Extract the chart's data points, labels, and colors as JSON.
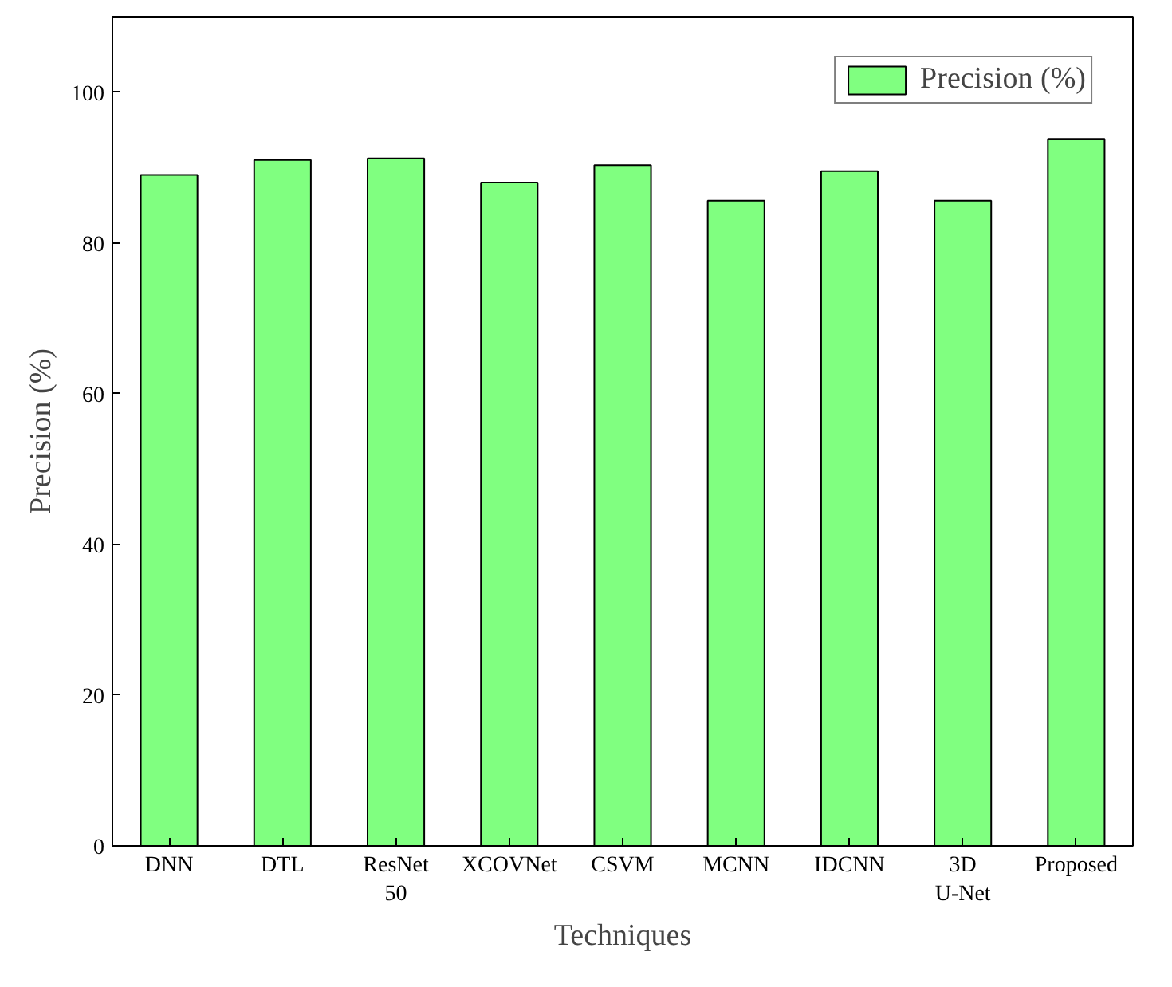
{
  "chart_data": {
    "type": "bar",
    "xlabel": "Techniques",
    "ylabel": "Precision (%)",
    "categories": [
      "DNN",
      "DTL",
      "ResNet 50",
      "XCOVNet",
      "CSVM",
      "MCNN",
      "IDCNN",
      "3D U-Net",
      "Proposed"
    ],
    "series": [
      {
        "name": "Precision (%)",
        "color": "#80ff80",
        "values": [
          89.0,
          91.0,
          91.2,
          88.0,
          90.3,
          85.6,
          89.5,
          85.6,
          93.8
        ]
      }
    ],
    "ylim": [
      0,
      110
    ],
    "yticks": [
      0,
      20,
      40,
      60,
      80,
      100
    ],
    "grid": false,
    "legend": "top right"
  }
}
